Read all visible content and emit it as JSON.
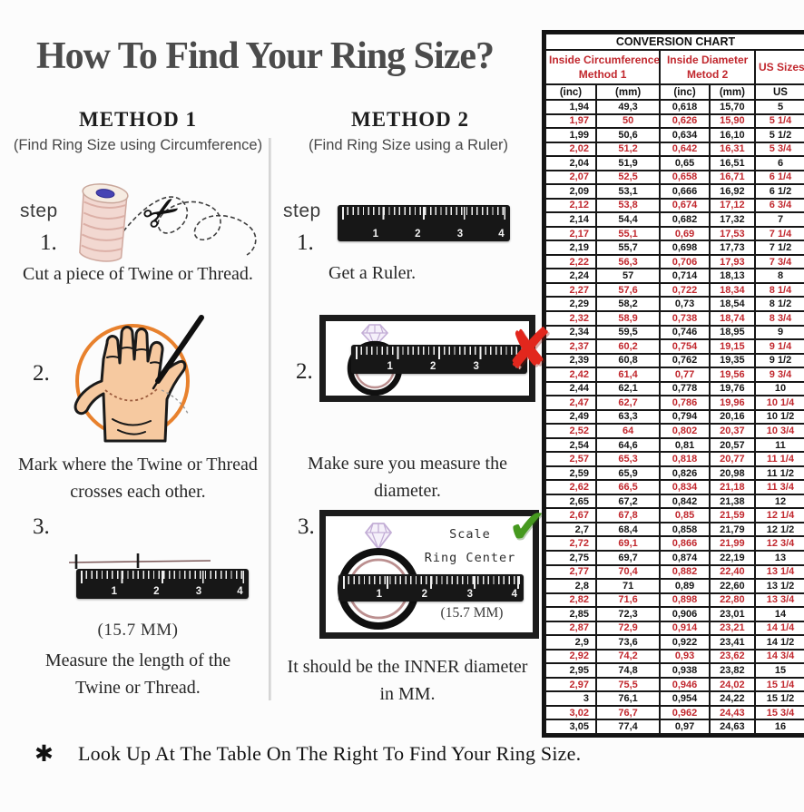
{
  "page": {
    "title": "How To Find Your Ring Size?",
    "footnote_symbol": "✱",
    "footnote": "Look Up  At The Table On The Right To Find Your Ring Size."
  },
  "method1": {
    "heading": "METHOD 1",
    "subtitle": "(Find Ring Size using Circumference)",
    "step_label": "step",
    "steps": [
      {
        "num": "1.",
        "caption": "Cut a piece of  Twine or Thread."
      },
      {
        "num": "2.",
        "caption_line1": "Mark where the Twine or Thread",
        "caption_line2": "crosses each other."
      },
      {
        "num": "3.",
        "measure": "(15.7 MM)",
        "caption_line1": "Measure the length of the",
        "caption_line2": "Twine or Thread."
      }
    ]
  },
  "method2": {
    "heading": "METHOD 2",
    "subtitle": "(Find Ring Size using a Ruler)",
    "step_label": "step",
    "steps": [
      {
        "num": "1.",
        "caption": "Get a Ruler."
      },
      {
        "num": "2.",
        "caption": "Make sure you measure the diameter."
      },
      {
        "num": "3.",
        "scale_label_line1": "Scale",
        "scale_label_line2": "Ring Center",
        "measure": "(15.7 MM)",
        "caption_line1": "It should be the INNER diameter",
        "caption_line2": "in MM."
      }
    ]
  },
  "illustrations": {
    "ruler_numbers": [
      "1",
      "2",
      "3",
      "4"
    ],
    "x_mark": "✘",
    "check_mark": "✔",
    "scissors": "✂"
  },
  "colors": {
    "accent_red": "#c1272d",
    "x_red": "#e2271d",
    "check_green": "#46991f",
    "circle_orange": "#e8812d",
    "skin": "#f6c9a0"
  },
  "table": {
    "title": "CONVERSION CHART",
    "group1_line1": "Inside Circumference",
    "group1_line2": "Method 1",
    "group2_line1": "Inside Diameter",
    "group2_line2": "Metod 2",
    "group3": "US Sizes",
    "units": [
      "(inc)",
      "(mm)",
      "(inc)",
      "(mm)",
      "US"
    ],
    "rows": [
      [
        "1,94",
        "49,3",
        "0,618",
        "15,70",
        "5"
      ],
      [
        "1,97",
        "50",
        "0,626",
        "15,90",
        "5 1/4"
      ],
      [
        "1,99",
        "50,6",
        "0,634",
        "16,10",
        "5 1/2"
      ],
      [
        "2,02",
        "51,2",
        "0,642",
        "16,31",
        "5 3/4"
      ],
      [
        "2,04",
        "51,9",
        "0,65",
        "16,51",
        "6"
      ],
      [
        "2,07",
        "52,5",
        "0,658",
        "16,71",
        "6 1/4"
      ],
      [
        "2,09",
        "53,1",
        "0,666",
        "16,92",
        "6 1/2"
      ],
      [
        "2,12",
        "53,8",
        "0,674",
        "17,12",
        "6 3/4"
      ],
      [
        "2,14",
        "54,4",
        "0,682",
        "17,32",
        "7"
      ],
      [
        "2,17",
        "55,1",
        "0,69",
        "17,53",
        "7 1/4"
      ],
      [
        "2,19",
        "55,7",
        "0,698",
        "17,73",
        "7 1/2"
      ],
      [
        "2,22",
        "56,3",
        "0,706",
        "17,93",
        "7 3/4"
      ],
      [
        "2,24",
        "57",
        "0,714",
        "18,13",
        "8"
      ],
      [
        "2,27",
        "57,6",
        "0,722",
        "18,34",
        "8 1/4"
      ],
      [
        "2,29",
        "58,2",
        "0,73",
        "18,54",
        "8 1/2"
      ],
      [
        "2,32",
        "58,9",
        "0,738",
        "18,74",
        "8 3/4"
      ],
      [
        "2,34",
        "59,5",
        "0,746",
        "18,95",
        "9"
      ],
      [
        "2,37",
        "60,2",
        "0,754",
        "19,15",
        "9 1/4"
      ],
      [
        "2,39",
        "60,8",
        "0,762",
        "19,35",
        "9 1/2"
      ],
      [
        "2,42",
        "61,4",
        "0,77",
        "19,56",
        "9 3/4"
      ],
      [
        "2,44",
        "62,1",
        "0,778",
        "19,76",
        "10"
      ],
      [
        "2,47",
        "62,7",
        "0,786",
        "19,96",
        "10 1/4"
      ],
      [
        "2,49",
        "63,3",
        "0,794",
        "20,16",
        "10 1/2"
      ],
      [
        "2,52",
        "64",
        "0,802",
        "20,37",
        "10 3/4"
      ],
      [
        "2,54",
        "64,6",
        "0,81",
        "20,57",
        "11"
      ],
      [
        "2,57",
        "65,3",
        "0,818",
        "20,77",
        "11 1/4"
      ],
      [
        "2,59",
        "65,9",
        "0,826",
        "20,98",
        "11 1/2"
      ],
      [
        "2,62",
        "66,5",
        "0,834",
        "21,18",
        "11 3/4"
      ],
      [
        "2,65",
        "67,2",
        "0,842",
        "21,38",
        "12"
      ],
      [
        "2,67",
        "67,8",
        "0,85",
        "21,59",
        "12 1/4"
      ],
      [
        "2,7",
        "68,4",
        "0,858",
        "21,79",
        "12 1/2"
      ],
      [
        "2,72",
        "69,1",
        "0,866",
        "21,99",
        "12 3/4"
      ],
      [
        "2,75",
        "69,7",
        "0,874",
        "22,19",
        "13"
      ],
      [
        "2,77",
        "70,4",
        "0,882",
        "22,40",
        "13 1/4"
      ],
      [
        "2,8",
        "71",
        "0,89",
        "22,60",
        "13 1/2"
      ],
      [
        "2,82",
        "71,6",
        "0,898",
        "22,80",
        "13 3/4"
      ],
      [
        "2,85",
        "72,3",
        "0,906",
        "23,01",
        "14"
      ],
      [
        "2,87",
        "72,9",
        "0,914",
        "23,21",
        "14 1/4"
      ],
      [
        "2,9",
        "73,6",
        "0,922",
        "23,41",
        "14 1/2"
      ],
      [
        "2,92",
        "74,2",
        "0,93",
        "23,62",
        "14 3/4"
      ],
      [
        "2,95",
        "74,8",
        "0,938",
        "23,82",
        "15"
      ],
      [
        "2,97",
        "75,5",
        "0,946",
        "24,02",
        "15 1/4"
      ],
      [
        "3",
        "76,1",
        "0,954",
        "24,22",
        "15 1/2"
      ],
      [
        "3,02",
        "76,7",
        "0,962",
        "24,43",
        "15 3/4"
      ],
      [
        "3,05",
        "77,4",
        "0,97",
        "24,63",
        "16"
      ]
    ]
  }
}
